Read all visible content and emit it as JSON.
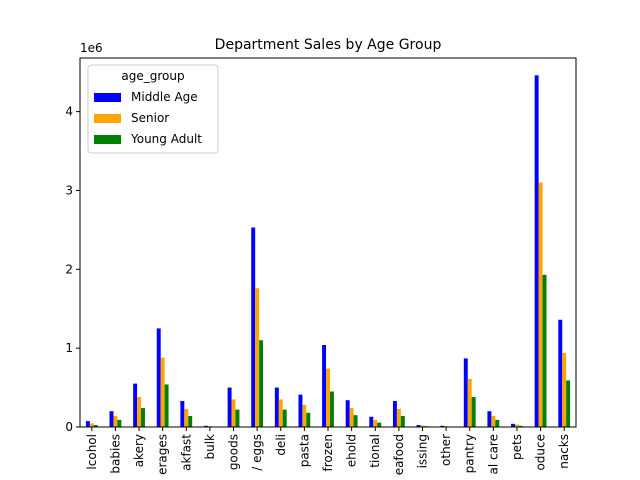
{
  "chart_data": {
    "type": "bar",
    "title": "Department Sales by Age Group",
    "xlabel": "",
    "ylabel": "",
    "y_multiplier_label": "1e6",
    "ylim": [
      0,
      4.68
    ],
    "yticks": [
      0,
      1,
      2,
      3,
      4
    ],
    "grid": false,
    "legend": {
      "title": "age_group",
      "placement": "top-left"
    },
    "categories": [
      "alcohol",
      "babies",
      "bakery",
      "beverages",
      "breakfast",
      "bulk",
      "canned goods",
      "dairy eggs",
      "deli",
      "dry goods pasta",
      "frozen",
      "household",
      "international",
      "meat seafood",
      "missing",
      "other",
      "pantry",
      "personal care",
      "pets",
      "produce",
      "snacks"
    ],
    "category_labels_visible": [
      "lcohol",
      "babies",
      "akery",
      "erages",
      "akfast",
      "bulk",
      "goods",
      "/ eggs",
      "deli",
      "pasta",
      "frozen",
      "ehold",
      "tional",
      "eafood",
      "issing",
      "other",
      "pantry",
      "al care",
      "pets",
      "oduce",
      "nacks"
    ],
    "series": [
      {
        "name": "Middle Age",
        "color": "#0000ff",
        "values": [
          0.075,
          0.2,
          0.55,
          1.25,
          0.33,
          0.015,
          0.5,
          2.53,
          0.5,
          0.41,
          1.04,
          0.34,
          0.13,
          0.33,
          0.025,
          0.015,
          0.87,
          0.2,
          0.04,
          4.46,
          1.36
        ]
      },
      {
        "name": "Senior",
        "color": "#ffa500",
        "values": [
          0.045,
          0.14,
          0.38,
          0.88,
          0.23,
          0.01,
          0.35,
          1.76,
          0.35,
          0.28,
          0.74,
          0.24,
          0.09,
          0.23,
          0.018,
          0.01,
          0.61,
          0.14,
          0.03,
          3.1,
          0.94
        ]
      },
      {
        "name": "Young Adult",
        "color": "#008000",
        "values": [
          0.025,
          0.09,
          0.24,
          0.54,
          0.14,
          0.006,
          0.22,
          1.1,
          0.22,
          0.18,
          0.45,
          0.15,
          0.055,
          0.14,
          0.01,
          0.006,
          0.38,
          0.09,
          0.015,
          1.93,
          0.59
        ]
      }
    ]
  }
}
